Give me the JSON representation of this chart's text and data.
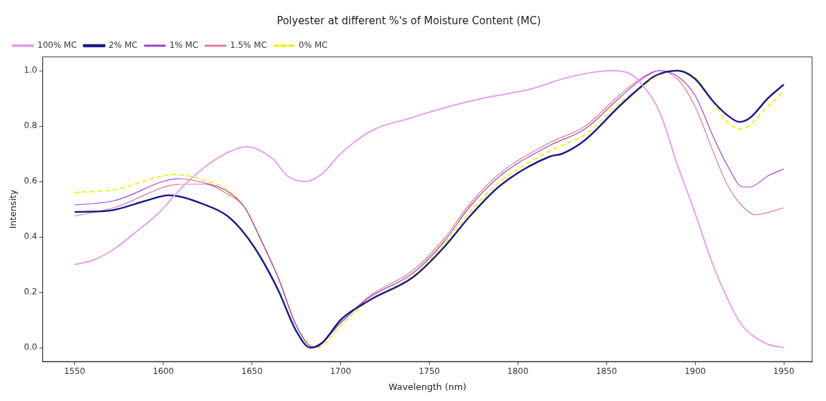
{
  "chart_data": {
    "type": "line",
    "title": "Polyester at different %'s of Moisture Content (MC)",
    "xlabel": "Wavelength (nm)",
    "ylabel": "Intensity",
    "xlim": [
      1532,
      1966
    ],
    "xticks": [
      1550,
      1600,
      1650,
      1700,
      1750,
      1800,
      1850,
      1900,
      1950
    ],
    "ylim": [
      -0.05,
      1.05
    ],
    "yticks": [
      {
        "value": 0,
        "label": "0.0"
      },
      {
        "value": 0.2,
        "label": "0.2"
      },
      {
        "value": 0.4,
        "label": "0.4"
      },
      {
        "value": 0.6,
        "label": "0.6"
      },
      {
        "value": 0.8,
        "label": "0.8"
      },
      {
        "value": 1,
        "label": "1.0"
      }
    ],
    "grid": false,
    "legend": "top left",
    "marker": "none",
    "series": [
      {
        "name": "100% MC",
        "color": "#e8a0e8",
        "x": [
          1550,
          1560,
          1572,
          1585,
          1598,
          1610,
          1623,
          1635,
          1647,
          1662,
          1670,
          1680,
          1690,
          1700,
          1718,
          1740,
          1758,
          1780,
          1805,
          1831,
          1853,
          1863,
          1870,
          1880,
          1890,
          1900,
          1910,
          1918,
          1926,
          1940,
          1950
        ],
        "values": [
          0.3,
          0.315,
          0.355,
          0.42,
          0.49,
          0.575,
          0.65,
          0.7,
          0.725,
          0.68,
          0.62,
          0.6,
          0.63,
          0.7,
          0.785,
          0.83,
          0.865,
          0.9,
          0.93,
          0.98,
          1.0,
          0.99,
          0.95,
          0.85,
          0.66,
          0.485,
          0.3,
          0.18,
          0.085,
          0.015,
          0.0
        ]
      },
      {
        "name": "2% MC",
        "color": "#1a1a8c",
        "x": [
          1550,
          1570,
          1590,
          1603,
          1623,
          1636,
          1646,
          1655,
          1665,
          1675,
          1683,
          1690,
          1700,
          1716,
          1741,
          1758,
          1773,
          1790,
          1818,
          1825,
          1838,
          1857,
          1870,
          1877,
          1890,
          1900,
          1910,
          1918,
          1925,
          1931,
          1941,
          1950
        ],
        "values": [
          0.49,
          0.495,
          0.53,
          0.55,
          0.517,
          0.476,
          0.41,
          0.325,
          0.205,
          0.06,
          0.0,
          0.02,
          0.1,
          0.17,
          0.255,
          0.36,
          0.475,
          0.585,
          0.69,
          0.7,
          0.75,
          0.87,
          0.945,
          0.98,
          1.0,
          0.97,
          0.89,
          0.84,
          0.815,
          0.83,
          0.9,
          0.95
        ]
      },
      {
        "name": "1% MC",
        "color": "#9a40d0",
        "x": [
          1550,
          1572,
          1609,
          1623,
          1636,
          1646,
          1655,
          1665,
          1675,
          1685,
          1700,
          1716,
          1741,
          1758,
          1773,
          1790,
          1818,
          1838,
          1857,
          1870,
          1880,
          1890,
          1900,
          1910,
          1918,
          1927,
          1931,
          1941,
          1950
        ],
        "values": [
          0.515,
          0.53,
          0.61,
          0.595,
          0.565,
          0.505,
          0.39,
          0.25,
          0.08,
          0.0,
          0.09,
          0.18,
          0.27,
          0.38,
          0.51,
          0.62,
          0.73,
          0.79,
          0.9,
          0.97,
          1.0,
          0.98,
          0.91,
          0.765,
          0.66,
          0.58,
          0.58,
          0.62,
          0.645
        ]
      },
      {
        "name": "1.5% MC",
        "color": "#e07a90",
        "x": [
          1550,
          1572,
          1610,
          1623,
          1636,
          1646,
          1655,
          1665,
          1675,
          1685,
          1700,
          1716,
          1741,
          1758,
          1773,
          1790,
          1818,
          1838,
          1857,
          1870,
          1880,
          1890,
          1900,
          1910,
          1918,
          1926,
          1934,
          1950
        ],
        "values": [
          0.475,
          0.505,
          0.59,
          0.59,
          0.555,
          0.505,
          0.39,
          0.25,
          0.08,
          0.0,
          0.09,
          0.185,
          0.28,
          0.39,
          0.52,
          0.63,
          0.74,
          0.8,
          0.91,
          0.975,
          1.0,
          0.97,
          0.87,
          0.71,
          0.59,
          0.515,
          0.48,
          0.505
        ]
      },
      {
        "name": "0% MC",
        "color": "#f0f020",
        "line_style": "dashed",
        "x": [
          1550,
          1572,
          1607,
          1623,
          1636,
          1646,
          1655,
          1665,
          1675,
          1687,
          1700,
          1716,
          1741,
          1758,
          1773,
          1790,
          1818,
          1838,
          1857,
          1870,
          1877,
          1890,
          1900,
          1910,
          1918,
          1926,
          1941,
          1950
        ],
        "values": [
          0.56,
          0.57,
          0.625,
          0.605,
          0.57,
          0.505,
          0.39,
          0.25,
          0.08,
          0.0,
          0.08,
          0.17,
          0.26,
          0.37,
          0.49,
          0.6,
          0.71,
          0.77,
          0.88,
          0.94,
          0.975,
          1.0,
          0.975,
          0.89,
          0.815,
          0.79,
          0.87,
          0.925
        ]
      }
    ]
  }
}
